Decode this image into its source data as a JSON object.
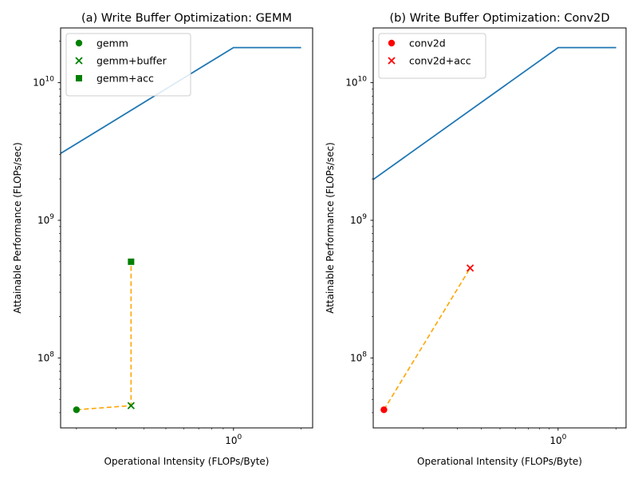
{
  "chart_data": [
    {
      "type": "line",
      "title": "(a) Write Buffer Optimization: GEMM",
      "xlabel": "Operational Intensity (FLOPs/Byte)",
      "ylabel": "Attainable Performance (FLOPs/sec)",
      "xscale": "log",
      "yscale": "log",
      "xlim": [
        0.17,
        2.25
      ],
      "ylim": [
        31000000.0,
        25000000000.0
      ],
      "grid": false,
      "legend_position": "upper-left",
      "x_ticks": [
        {
          "value": 1,
          "label": "10^0"
        }
      ],
      "y_ticks": [
        {
          "value": 100000000,
          "label": "10^8"
        },
        {
          "value": 1000000000,
          "label": "10^9"
        },
        {
          "value": 10000000000,
          "label": "10^10"
        }
      ],
      "roofline": {
        "color": "#1f77b4",
        "x": [
          0.1,
          1,
          2
        ],
        "y": [
          1800000000.0,
          18000000000.0,
          18000000000.0
        ]
      },
      "connector": {
        "color": "#ffa500",
        "x": [
          0.2,
          0.35,
          0.35
        ],
        "y": [
          42000000.0,
          45000000.0,
          500000000.0
        ]
      },
      "points": [
        {
          "name": "gemm",
          "x": 0.2,
          "y": 42000000.0,
          "marker": "circle",
          "color": "#008000"
        },
        {
          "name": "gemm+buffer",
          "x": 0.35,
          "y": 45000000.0,
          "marker": "x",
          "color": "#008000"
        },
        {
          "name": "gemm+acc",
          "x": 0.35,
          "y": 500000000.0,
          "marker": "square",
          "color": "#008000"
        }
      ]
    },
    {
      "type": "line",
      "title": "(b) Write Buffer Optimization: Conv2D",
      "xlabel": "Operational Intensity (FLOPs/Byte)",
      "ylabel": "Attainable Performance (FLOPs/sec)",
      "xscale": "log",
      "yscale": "log",
      "xlim": [
        0.11,
        2.25
      ],
      "ylim": [
        31000000.0,
        25000000000.0
      ],
      "grid": false,
      "legend_position": "upper-left",
      "x_ticks": [
        {
          "value": 1,
          "label": "10^0"
        }
      ],
      "y_ticks": [
        {
          "value": 100000000,
          "label": "10^8"
        },
        {
          "value": 1000000000,
          "label": "10^9"
        },
        {
          "value": 10000000000,
          "label": "10^10"
        }
      ],
      "roofline": {
        "color": "#1f77b4",
        "x": [
          0.1,
          1,
          2
        ],
        "y": [
          1800000000.0,
          18000000000.0,
          18000000000.0
        ]
      },
      "connector": {
        "color": "#ffa500",
        "x": [
          0.125,
          0.35
        ],
        "y": [
          42000000.0,
          450000000.0
        ]
      },
      "points": [
        {
          "name": "conv2d",
          "x": 0.125,
          "y": 42000000.0,
          "marker": "circle",
          "color": "#ff0000"
        },
        {
          "name": "conv2d+acc",
          "x": 0.35,
          "y": 450000000.0,
          "marker": "x",
          "color": "#ff0000"
        }
      ]
    }
  ]
}
